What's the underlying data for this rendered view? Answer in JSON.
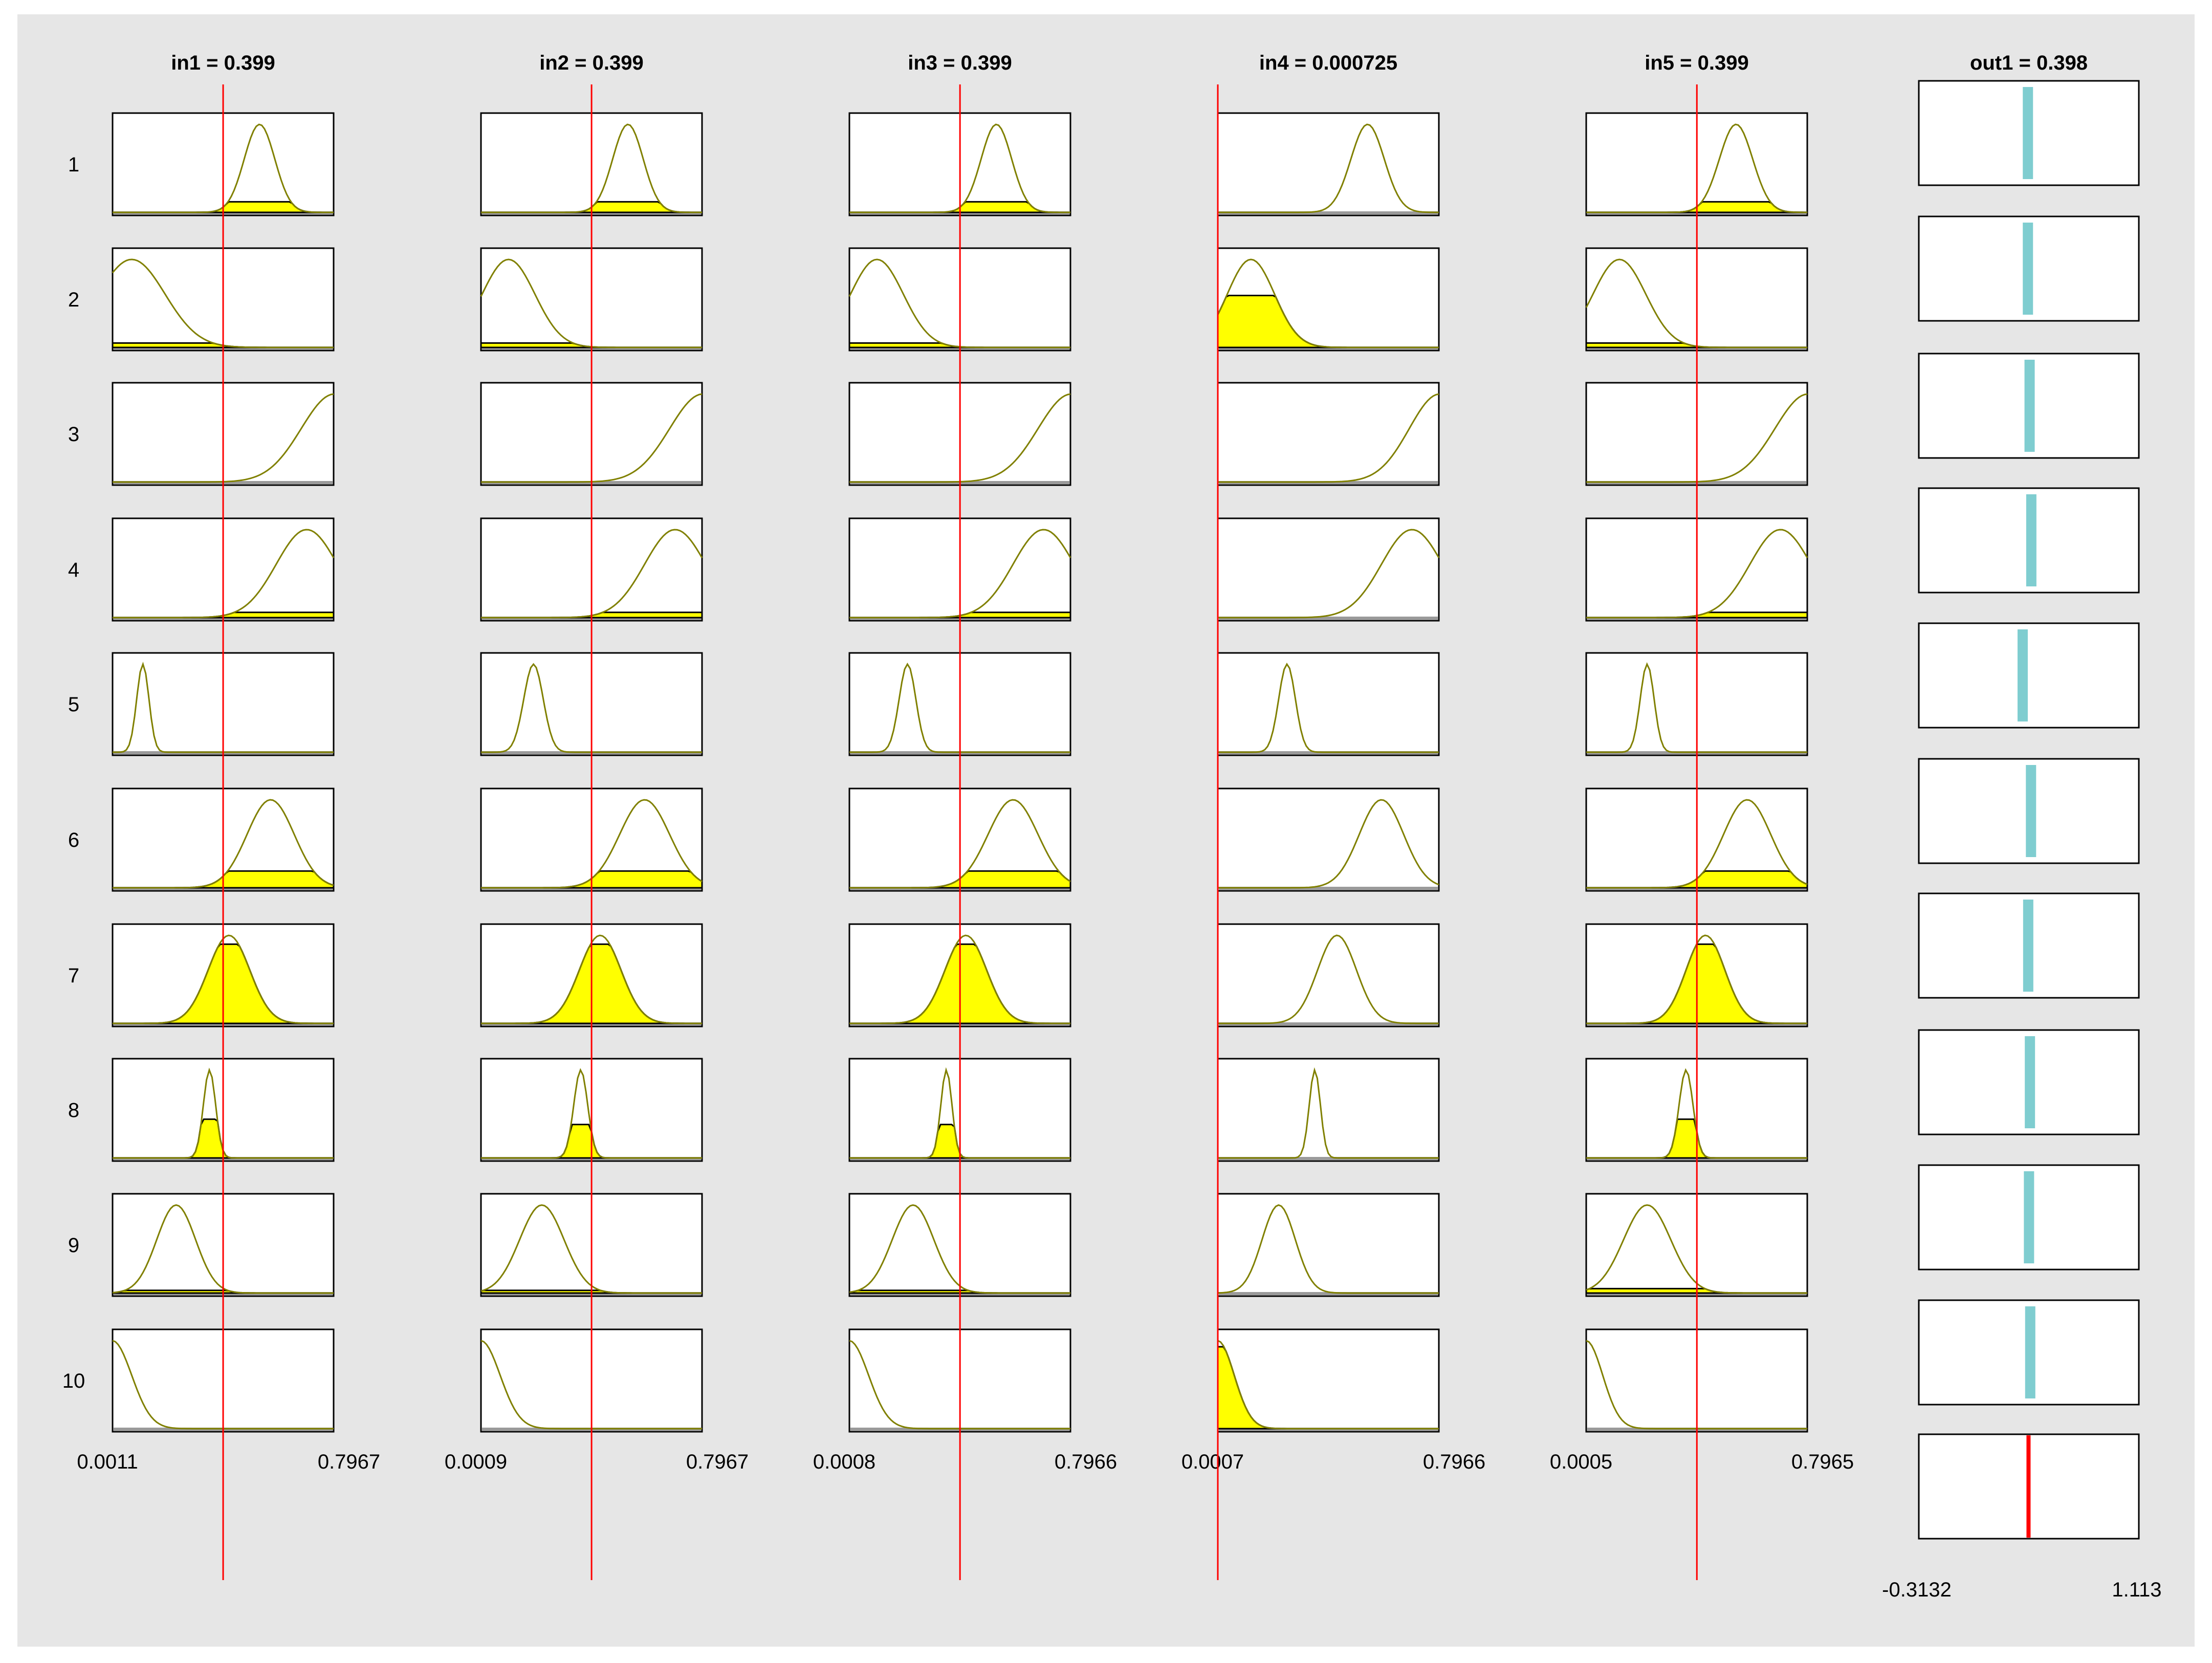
{
  "chart_data": {
    "type": "fuzzy-rule-viewer",
    "inputs": [
      {
        "title": "in1 = 0.399",
        "value": 0.399,
        "range": [
          0.0011,
          0.7967
        ],
        "range_labels": [
          "0.0011",
          "0.7967"
        ]
      },
      {
        "title": "in2 = 0.399",
        "value": 0.399,
        "range": [
          0.0009,
          0.7967
        ],
        "range_labels": [
          "0.0009",
          "0.7967"
        ]
      },
      {
        "title": "in3 = 0.399",
        "value": 0.399,
        "range": [
          0.0008,
          0.7966
        ],
        "range_labels": [
          "0.0008",
          "0.7966"
        ]
      },
      {
        "title": "in4 = 0.000725",
        "value": 0.000725,
        "range": [
          0.0007,
          0.7966
        ],
        "range_labels": [
          "0.0007",
          "0.7966"
        ]
      },
      {
        "title": "in5 = 0.399",
        "value": 0.399,
        "range": [
          0.0005,
          0.7965
        ],
        "range_labels": [
          "0.0005",
          "0.7965"
        ]
      }
    ],
    "output": {
      "title": "out1 = 0.398",
      "value": 0.398,
      "range": [
        -0.3132,
        1.113
      ],
      "range_labels": [
        "-0.3132",
        "1.113"
      ]
    },
    "rule_labels": [
      "1",
      "2",
      "3",
      "4",
      "5",
      "6",
      "7",
      "8",
      "9",
      "10"
    ],
    "membership_functions": [
      [
        {
          "center": 0.53,
          "sigma": 0.055,
          "degree": 0.12
        },
        {
          "center": 0.07,
          "sigma": 0.12,
          "degree": 0.05
        },
        {
          "center": 0.8,
          "sigma": 0.12,
          "degree": 0.0
        },
        {
          "center": 0.7,
          "sigma": 0.11,
          "degree": 0.06
        },
        {
          "center": 0.11,
          "sigma": 0.022,
          "degree": 0.0
        },
        {
          "center": 0.57,
          "sigma": 0.085,
          "degree": 0.19
        },
        {
          "center": 0.42,
          "sigma": 0.075,
          "degree": 0.9
        },
        {
          "center": 0.35,
          "sigma": 0.022,
          "degree": 0.44
        },
        {
          "center": 0.23,
          "sigma": 0.07,
          "degree": 0.03
        },
        {
          "center": 0.0,
          "sigma": 0.07,
          "degree": 0.0
        }
      ],
      [
        {
          "center": 0.53,
          "sigma": 0.055,
          "degree": 0.12
        },
        {
          "center": 0.1,
          "sigma": 0.095,
          "degree": 0.05
        },
        {
          "center": 0.8,
          "sigma": 0.12,
          "degree": 0.0
        },
        {
          "center": 0.7,
          "sigma": 0.11,
          "degree": 0.06
        },
        {
          "center": 0.19,
          "sigma": 0.035,
          "degree": 0.0
        },
        {
          "center": 0.59,
          "sigma": 0.09,
          "degree": 0.19
        },
        {
          "center": 0.43,
          "sigma": 0.075,
          "degree": 0.9
        },
        {
          "center": 0.36,
          "sigma": 0.025,
          "degree": 0.38
        },
        {
          "center": 0.22,
          "sigma": 0.08,
          "degree": 0.03
        },
        {
          "center": 0.0,
          "sigma": 0.07,
          "degree": 0.0
        }
      ],
      [
        {
          "center": 0.53,
          "sigma": 0.055,
          "degree": 0.12
        },
        {
          "center": 0.1,
          "sigma": 0.095,
          "degree": 0.05
        },
        {
          "center": 0.8,
          "sigma": 0.12,
          "degree": 0.0
        },
        {
          "center": 0.7,
          "sigma": 0.11,
          "degree": 0.06
        },
        {
          "center": 0.21,
          "sigma": 0.03,
          "degree": 0.0
        },
        {
          "center": 0.59,
          "sigma": 0.09,
          "degree": 0.19
        },
        {
          "center": 0.42,
          "sigma": 0.075,
          "degree": 0.9
        },
        {
          "center": 0.35,
          "sigma": 0.02,
          "degree": 0.38
        },
        {
          "center": 0.23,
          "sigma": 0.075,
          "degree": 0.03
        },
        {
          "center": 0.0,
          "sigma": 0.07,
          "degree": 0.0
        }
      ],
      [
        {
          "center": 0.54,
          "sigma": 0.06,
          "degree": 0.0
        },
        {
          "center": 0.12,
          "sigma": 0.085,
          "degree": 0.59
        },
        {
          "center": 0.8,
          "sigma": 0.11,
          "degree": 0.0
        },
        {
          "center": 0.7,
          "sigma": 0.11,
          "degree": 0.0
        },
        {
          "center": 0.25,
          "sigma": 0.03,
          "degree": 0.0
        },
        {
          "center": 0.59,
          "sigma": 0.08,
          "degree": 0.0
        },
        {
          "center": 0.43,
          "sigma": 0.07,
          "degree": 0.0
        },
        {
          "center": 0.35,
          "sigma": 0.02,
          "degree": 0.0
        },
        {
          "center": 0.22,
          "sigma": 0.06,
          "degree": 0.0
        },
        {
          "center": 0.0,
          "sigma": 0.06,
          "degree": 0.93
        }
      ],
      [
        {
          "center": 0.54,
          "sigma": 0.06,
          "degree": 0.12
        },
        {
          "center": 0.12,
          "sigma": 0.095,
          "degree": 0.05
        },
        {
          "center": 0.8,
          "sigma": 0.12,
          "degree": 0.0
        },
        {
          "center": 0.7,
          "sigma": 0.11,
          "degree": 0.06
        },
        {
          "center": 0.22,
          "sigma": 0.025,
          "degree": 0.0
        },
        {
          "center": 0.58,
          "sigma": 0.085,
          "degree": 0.19
        },
        {
          "center": 0.43,
          "sigma": 0.07,
          "degree": 0.9
        },
        {
          "center": 0.36,
          "sigma": 0.025,
          "degree": 0.44
        },
        {
          "center": 0.22,
          "sigma": 0.085,
          "degree": 0.05
        },
        {
          "center": 0.0,
          "sigma": 0.06,
          "degree": 0.0
        }
      ]
    ],
    "rule_outputs": [
      0.394,
      0.394,
      0.405,
      0.416,
      0.36,
      0.414,
      0.396,
      0.407,
      0.401,
      0.409
    ]
  }
}
